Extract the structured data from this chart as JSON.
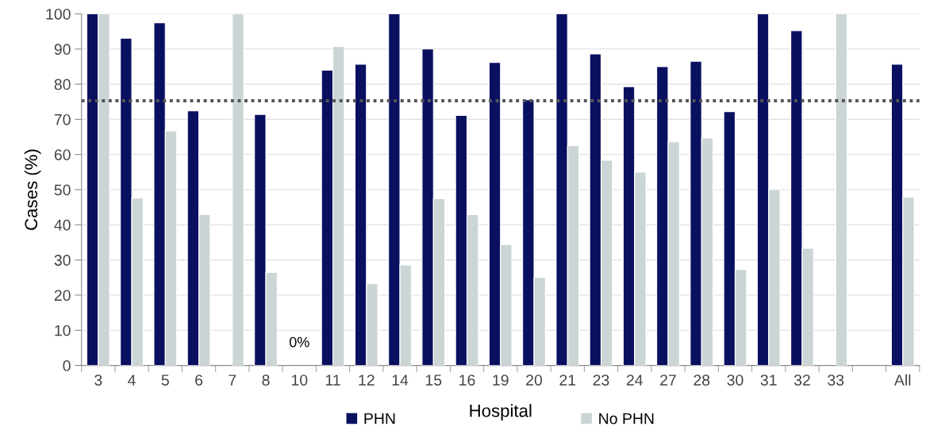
{
  "chart_data": {
    "type": "bar",
    "xlabel": "Hospital",
    "ylabel": "Cases (%)",
    "categories": [
      "3",
      "4",
      "5",
      "6",
      "7",
      "8",
      "10",
      "11",
      "12",
      "14",
      "15",
      "16",
      "19",
      "20",
      "21",
      "23",
      "24",
      "27",
      "28",
      "30",
      "31",
      "32",
      "33",
      null,
      "All"
    ],
    "series": [
      {
        "name": "PHN",
        "color": "#0a1060",
        "values": [
          100,
          93.1,
          97.5,
          72.4,
          0,
          71.4,
          0,
          84,
          85.7,
          100,
          90,
          71.1,
          86.2,
          75.6,
          100,
          88.6,
          79.3,
          85,
          86.5,
          72.2,
          100,
          95.2,
          0,
          null,
          85.7
        ]
      },
      {
        "name": "No PHN",
        "color": "#ccd5d6",
        "values": [
          100,
          47.6,
          66.7,
          42.9,
          100,
          26.5,
          0,
          90.7,
          23.3,
          28.6,
          47.4,
          42.9,
          34.4,
          25,
          62.5,
          58.4,
          55,
          63.6,
          64.7,
          27.3,
          50,
          33.3,
          100,
          null,
          47.8
        ]
      }
    ],
    "ylim": [
      0,
      100
    ],
    "yticks": [
      0,
      10,
      20,
      30,
      40,
      50,
      60,
      70,
      80,
      90,
      100
    ],
    "ref_lines": [
      {
        "axis": "y",
        "value": 75.3,
        "color": "#555555",
        "line_style": "dotted"
      }
    ],
    "annotations": [
      {
        "text": "0%",
        "x": "10",
        "y": 0
      }
    ],
    "grid": "y",
    "legend": "bottom"
  }
}
